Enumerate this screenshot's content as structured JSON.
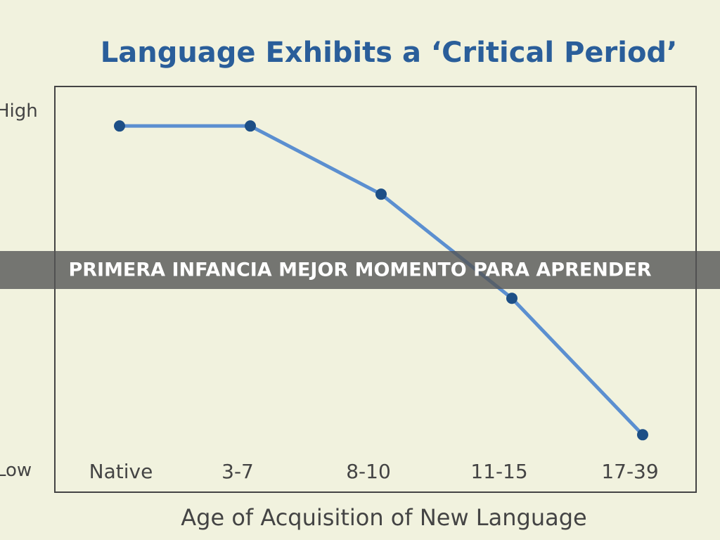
{
  "chart_data": {
    "type": "line",
    "title": "Language Exhibits a ‘Critical Period’",
    "x_label": "Age of Acquisition of New Language",
    "categories": [
      "Native",
      "3-7",
      "8-10",
      "11-15",
      "17-39"
    ],
    "values": [
      9.6,
      9.6,
      7.7,
      4.8,
      1.0
    ],
    "color": "#5b8fd0",
    "marker_color": "#1d4f86",
    "ylim": [
      -0.6,
      10.7
    ],
    "yticks": [
      {
        "value": 0,
        "label": "Low"
      },
      {
        "value": 10,
        "label": "High"
      }
    ]
  },
  "caption": "PRIMERA INFANCIA MEJOR MOMENTO PARA APRENDER"
}
